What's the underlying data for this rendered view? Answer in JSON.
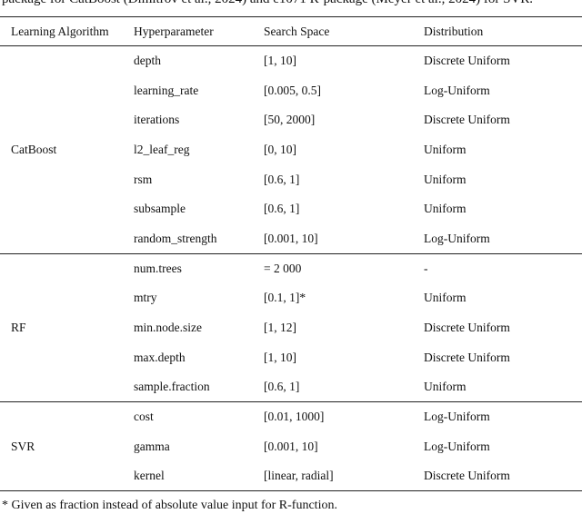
{
  "caption_fragment": "package for CatBoost (Dimitrov et al., 2024) and e1071 R-package (Meyer et al., 2024) for SVR.",
  "headers": [
    "Learning Algorithm",
    "Hyperparameter",
    "Search Space",
    "Distribution"
  ],
  "groups": [
    {
      "algorithm": "CatBoost",
      "rows": [
        [
          "depth",
          "[1, 10]",
          "Discrete Uniform"
        ],
        [
          "learning_rate",
          "[0.005, 0.5]",
          "Log-Uniform"
        ],
        [
          "iterations",
          "[50, 2000]",
          "Discrete Uniform"
        ],
        [
          "l2_leaf_reg",
          "[0, 10]",
          "Uniform"
        ],
        [
          "rsm",
          "[0.6, 1]",
          "Uniform"
        ],
        [
          "subsample",
          "[0.6, 1]",
          "Uniform"
        ],
        [
          "random_strength",
          "[0.001, 10]",
          "Log-Uniform"
        ]
      ]
    },
    {
      "algorithm": "RF",
      "rows": [
        [
          "num.trees",
          "= 2 000",
          "-"
        ],
        [
          "mtry",
          "[0.1, 1]*",
          "Uniform"
        ],
        [
          "min.node.size",
          "[1, 12]",
          "Discrete Uniform"
        ],
        [
          "max.depth",
          "[1, 10]",
          "Discrete Uniform"
        ],
        [
          "sample.fraction",
          "[0.6, 1]",
          "Uniform"
        ]
      ]
    },
    {
      "algorithm": "SVR",
      "rows": [
        [
          "cost",
          "[0.01, 1000]",
          "Log-Uniform"
        ],
        [
          "gamma",
          "[0.001, 10]",
          "Log-Uniform"
        ],
        [
          "kernel",
          "[linear, radial]",
          "Discrete Uniform"
        ]
      ]
    }
  ],
  "footnote": "* Given as fraction instead of absolute value input for R-function."
}
